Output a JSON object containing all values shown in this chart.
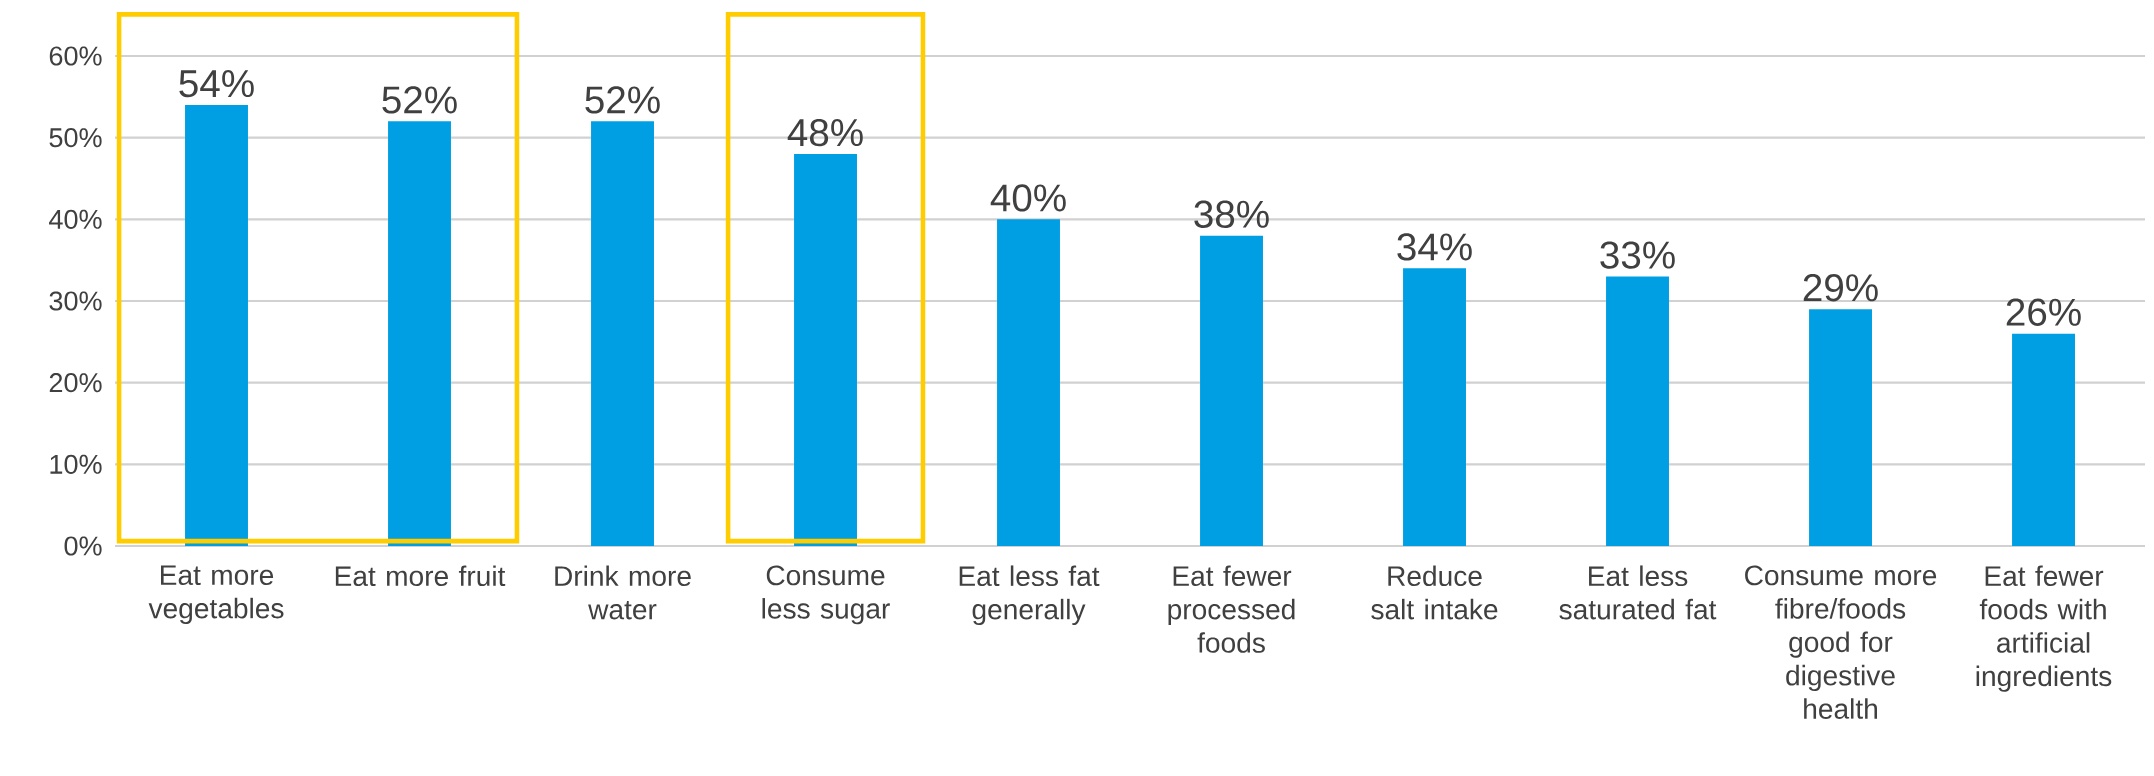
{
  "chart_data": {
    "type": "bar",
    "categories": [
      "Eat more vegetables",
      "Eat more fruit",
      "Drink more water",
      "Consume less sugar",
      "Eat less fat generally",
      "Eat fewer processed foods",
      "Reduce salt intake",
      "Eat less saturated fat",
      "Consume more fibre/foods good for digestive health",
      "Eat fewer foods with artificial ingredients"
    ],
    "values": [
      54,
      52,
      52,
      48,
      40,
      38,
      34,
      33,
      29,
      26
    ],
    "value_labels": [
      "54%",
      "52%",
      "52%",
      "48%",
      "40%",
      "38%",
      "34%",
      "33%",
      "29%",
      "26%"
    ],
    "color": "#009fe3",
    "ylim": [
      0,
      60
    ],
    "yticks": [
      {
        "value": 0,
        "label": "0%"
      },
      {
        "value": 10,
        "label": "10%"
      },
      {
        "value": 20,
        "label": "20%"
      },
      {
        "value": 30,
        "label": "30%"
      },
      {
        "value": 40,
        "label": "40%"
      },
      {
        "value": 50,
        "label": "50%"
      },
      {
        "value": 60,
        "label": "60%"
      }
    ],
    "grid": "y"
  }
}
